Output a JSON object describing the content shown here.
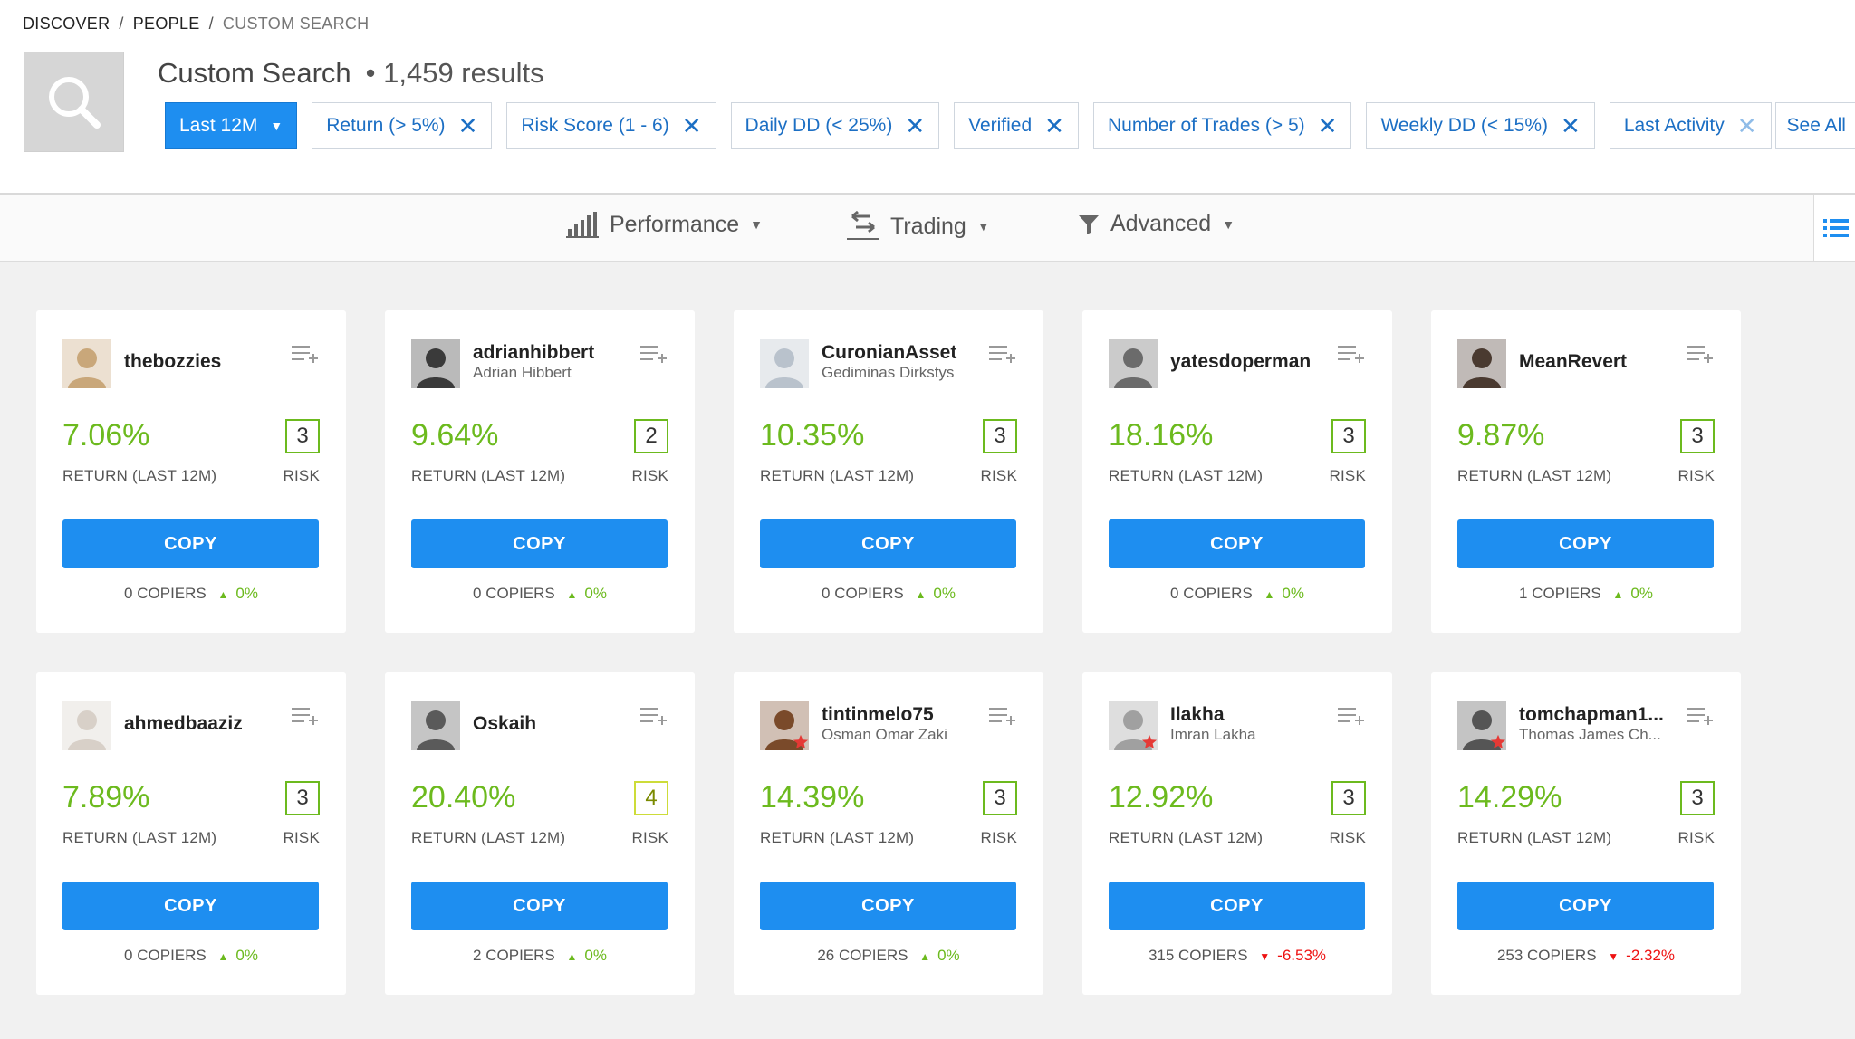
{
  "breadcrumb": [
    "DISCOVER",
    "PEOPLE",
    "CUSTOM SEARCH"
  ],
  "header": {
    "title": "Custom Search",
    "results": "1,459 results"
  },
  "filters": [
    {
      "label": "Last 12M",
      "type": "dropdown"
    },
    {
      "label": "Return (> 5%)"
    },
    {
      "label": "Risk Score (1 - 6)"
    },
    {
      "label": "Daily DD (< 25%)"
    },
    {
      "label": "Verified"
    },
    {
      "label": "Number of Trades (> 5)"
    },
    {
      "label": "Weekly DD (< 15%)"
    },
    {
      "label": "Last Activity"
    },
    {
      "label": "See All",
      "type": "dropdown"
    }
  ],
  "toolbar": {
    "performance": "Performance",
    "trading": "Trading",
    "advanced": "Advanced"
  },
  "labels": {
    "return": "RETURN (LAST 12M)",
    "risk": "RISK",
    "copy": "COPY"
  },
  "colors": {
    "accent": "#1e8ef0",
    "positive": "#6cba1e",
    "negative": "#e11111"
  },
  "traders": [
    {
      "username": "thebozzies",
      "fullname": "",
      "return": "7.06%",
      "risk": "3",
      "copiers": "0 COPIERS",
      "change": "0%",
      "direction": "up",
      "star": false
    },
    {
      "username": "adrianhibbert",
      "fullname": "Adrian Hibbert",
      "return": "9.64%",
      "risk": "2",
      "copiers": "0 COPIERS",
      "change": "0%",
      "direction": "up",
      "star": false
    },
    {
      "username": "CuronianAsset",
      "fullname": "Gediminas Dirkstys",
      "return": "10.35%",
      "risk": "3",
      "copiers": "0 COPIERS",
      "change": "0%",
      "direction": "up",
      "star": false
    },
    {
      "username": "yatesdoperman",
      "fullname": "",
      "return": "18.16%",
      "risk": "3",
      "copiers": "0 COPIERS",
      "change": "0%",
      "direction": "up",
      "star": false
    },
    {
      "username": "MeanRevert",
      "fullname": "",
      "return": "9.87%",
      "risk": "3",
      "copiers": "1 COPIERS",
      "change": "0%",
      "direction": "up",
      "star": false
    },
    {
      "username": "ahmedbaaziz",
      "fullname": "",
      "return": "7.89%",
      "risk": "3",
      "copiers": "0 COPIERS",
      "change": "0%",
      "direction": "up",
      "star": false
    },
    {
      "username": "Oskaih",
      "fullname": "",
      "return": "20.40%",
      "risk": "4",
      "copiers": "2 COPIERS",
      "change": "0%",
      "direction": "up",
      "star": false
    },
    {
      "username": "tintinmelo75",
      "fullname": "Osman Omar Zaki",
      "return": "14.39%",
      "risk": "3",
      "copiers": "26 COPIERS",
      "change": "0%",
      "direction": "up",
      "star": true
    },
    {
      "username": "Ilakha",
      "fullname": "Imran Lakha",
      "return": "12.92%",
      "risk": "3",
      "copiers": "315 COPIERS",
      "change": "-6.53%",
      "direction": "down",
      "star": true
    },
    {
      "username": "tomchapman1...",
      "fullname": "Thomas James Ch...",
      "return": "14.29%",
      "risk": "3",
      "copiers": "253 COPIERS",
      "change": "-2.32%",
      "direction": "down",
      "star": true
    }
  ]
}
